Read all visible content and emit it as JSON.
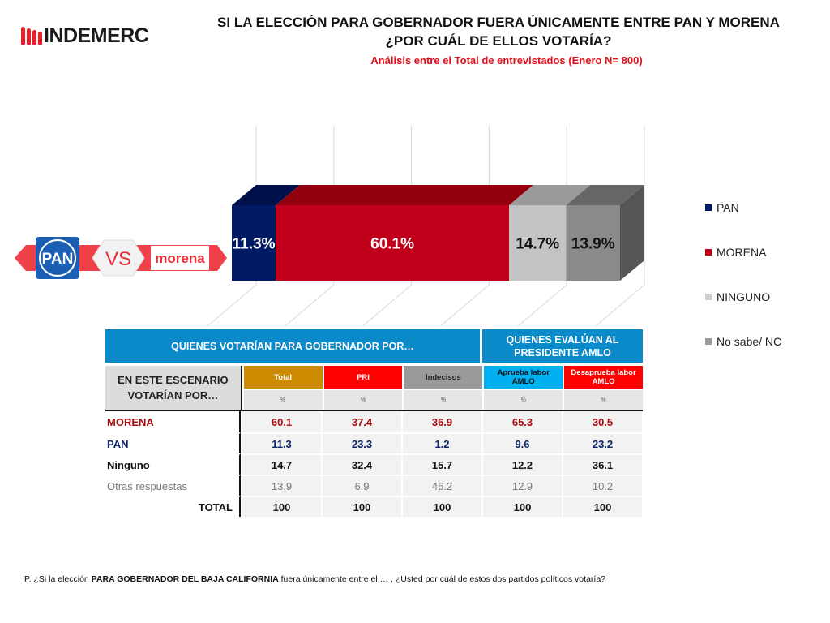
{
  "logo": {
    "text": "INDEMERC"
  },
  "header": {
    "title_line1": "SI LA ELECCIÓN  PARA GOBERNADOR FUERA ÚNICAMENTE ENTRE PAN Y MORENA",
    "title_line2": "¿POR CUÁL DE ELLOS VOTARÍA?",
    "subtitle": "Análisis entre el Total de entrevistados (Enero N= 800)"
  },
  "banner": {
    "left": "PAN",
    "middle": "VS",
    "right": "morena"
  },
  "colors": {
    "pan": "#001b63",
    "morena": "#c0001a",
    "ninguno": "#c3c3c3",
    "nosabe": "#8a8a8a",
    "table_header": "#0a8ac8",
    "total_col": "#cc8b00",
    "pri_col": "#ff0000",
    "indecisos_col": "#9a9a9a",
    "aprueba_col": "#00b0f0",
    "desaprueba_col": "#ff0000",
    "row_morena": "#a50d12",
    "row_pan": "#0d2464",
    "row_ninguno": "#111111",
    "row_otras": "#7a7a7a",
    "row_total": "#111111"
  },
  "chart_data": {
    "type": "bar",
    "orientation": "horizontal-stacked-3d",
    "categories": [
      "Total"
    ],
    "series": [
      {
        "name": "PAN",
        "values": [
          11.3
        ],
        "label": "11.3%"
      },
      {
        "name": "MORENA",
        "values": [
          60.1
        ],
        "label": "60.1%"
      },
      {
        "name": "NINGUNO",
        "values": [
          14.7
        ],
        "label": "14.7%"
      },
      {
        "name": "No sabe/ NC",
        "values": [
          13.9
        ],
        "label": "13.9%"
      }
    ],
    "xlim": [
      0,
      100
    ],
    "grid": true,
    "legend": "right",
    "title": "SI LA ELECCIÓN PARA GOBERNADOR FUERA ÚNICAMENTE ENTRE PAN Y MORENA ¿POR CUÁL DE ELLOS VOTARÍA?"
  },
  "legend": [
    {
      "label": "PAN"
    },
    {
      "label": "MORENA"
    },
    {
      "label": "NINGUNO"
    },
    {
      "label": "No sabe/ NC"
    }
  ],
  "table": {
    "group1": "QUIENES VOTARÍAN PARA GOBERNADOR POR…",
    "group2_line1": "QUIENES EVALÚAN AL",
    "group2_line2": "PRESIDENTE AMLO",
    "row_header_line1": "EN ESTE ESCENARIO",
    "row_header_line2": "VOTARÍAN POR…",
    "columns": [
      {
        "name": "Total",
        "unit": "%"
      },
      {
        "name": "PRI",
        "unit": "%"
      },
      {
        "name": "Indecisos",
        "unit": "%"
      },
      {
        "name": "Aprueba labor AMLO",
        "unit": "%"
      },
      {
        "name": "Desaprueba labor AMLO",
        "unit": "%"
      }
    ],
    "rows": [
      {
        "label": "MORENA",
        "values": [
          "60.1",
          "37.4",
          "36.9",
          "65.3",
          "30.5"
        ]
      },
      {
        "label": "PAN",
        "values": [
          "11.3",
          "23.3",
          "1.2",
          "9.6",
          "23.2"
        ]
      },
      {
        "label": "Ninguno",
        "values": [
          "14.7",
          "32.4",
          "15.7",
          "12.2",
          "36.1"
        ]
      },
      {
        "label": "Otras respuestas",
        "values": [
          "13.9",
          "6.9",
          "46.2",
          "12.9",
          "10.2"
        ]
      },
      {
        "label": "TOTAL",
        "values": [
          "100",
          "100",
          "100",
          "100",
          "100"
        ]
      }
    ]
  },
  "footnote": {
    "prefix": "P. ¿Si la elección ",
    "bold": "PARA GOBERNADOR DEL BAJA CALIFORNIA",
    "suffix": " fuera únicamente entre el … , ¿Usted por cuál de estos dos partidos políticos votaría?"
  }
}
